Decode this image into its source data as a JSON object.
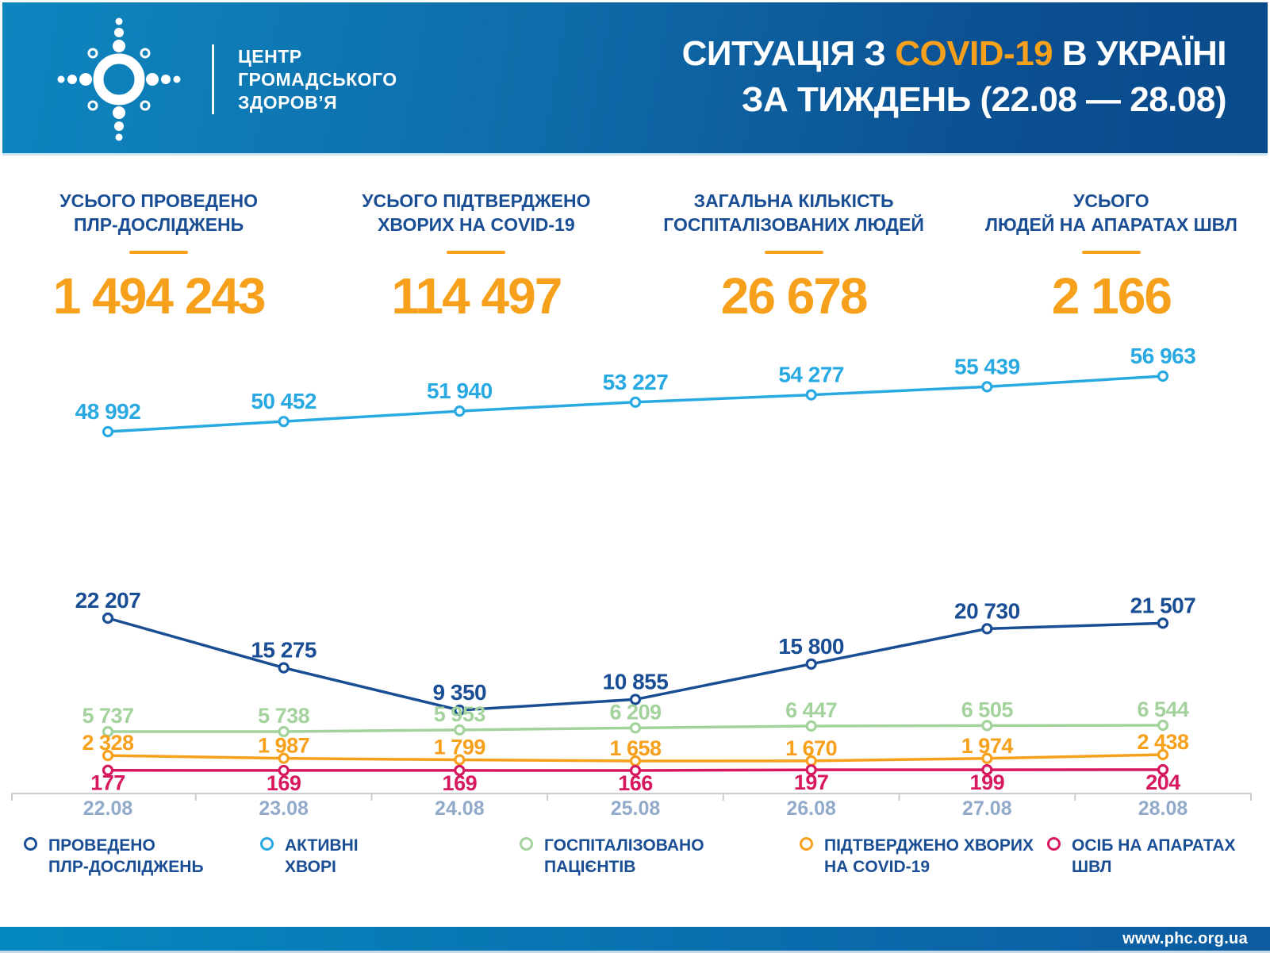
{
  "header": {
    "logo_text": "ЦЕНТР\nГРОМАДСЬКОГО\nЗДОРОВ’Я",
    "title": {
      "line1_prefix": "СИТУАЦІЯ З ",
      "line1_highlight": "COVID-19",
      "line1_suffix": " В УКРАЇНІ",
      "line2": "ЗА ТИЖДЕНЬ (22.08 — 28.08)"
    }
  },
  "stats": {
    "items": [
      {
        "label": "УСЬОГО ПРОВЕДЕНО\nПЛР-ДОСЛІДЖЕНЬ",
        "value": "1 494 243"
      },
      {
        "label": "УСЬОГО ПІДТВЕРДЖЕНО\nХВОРИХ НА COVID-19",
        "value": "114 497"
      },
      {
        "label": "ЗАГАЛЬНА КІЛЬКІСТЬ\nГОСПІТАЛІЗОВАНИХ ЛЮДЕЙ",
        "value": "26 678"
      },
      {
        "label": "УСЬОГО\nЛЮДЕЙ НА АПАРАТАХ ШВЛ",
        "value": "2 166"
      }
    ]
  },
  "chart_data": {
    "type": "line",
    "categories": [
      "22.08",
      "23.08",
      "24.08",
      "25.08",
      "26.08",
      "27.08",
      "28.08"
    ],
    "series": [
      {
        "id": "active",
        "name": "АКТИВНІ ХВОРІ",
        "color": "#29a9e1",
        "values": [
          48992,
          50452,
          51940,
          53227,
          54277,
          55439,
          56963
        ],
        "label_position": "above"
      },
      {
        "id": "pcr",
        "name": "ПРОВЕДЕНО ПЛР-ДОСЛІДЖЕНЬ",
        "color": "#1a4e94",
        "values": [
          22207,
          15275,
          9350,
          10855,
          15800,
          20730,
          21507
        ],
        "label_position": "above"
      },
      {
        "id": "hospitalized",
        "name": "ГОСПІТАЛІЗОВАНО ПАЦІЄНТІВ",
        "color": "#a3d29c",
        "values": [
          5737,
          5738,
          5953,
          6209,
          6447,
          6505,
          6544
        ],
        "label_position": "above"
      },
      {
        "id": "confirmed",
        "name": "ПІДТВЕРДЖЕНО ХВОРИХ НА COVID-19",
        "color": "#f6a01b",
        "values": [
          2328,
          1987,
          1799,
          1658,
          1670,
          1974,
          2438
        ],
        "label_position": "above"
      },
      {
        "id": "ventilator",
        "name": "ОСІБ НА АПАРАТАХ ШВЛ",
        "color": "#d7185e",
        "values": [
          177,
          169,
          169,
          166,
          197,
          199,
          204
        ],
        "label_position": "below"
      }
    ],
    "legend": [
      {
        "series": "pcr",
        "label": "ПРОВЕДЕНО\nПЛР-ДОСЛІДЖЕНЬ"
      },
      {
        "series": "active",
        "label": "АКТИВНІ\nХВОРІ"
      },
      {
        "series": "hospitalized",
        "label": "ГОСПІТАЛІЗОВАНО\nПАЦІЄНТІВ"
      },
      {
        "series": "confirmed",
        "label": "ПІДТВЕРДЖЕНО ХВОРИХ\nНА COVID-19"
      },
      {
        "series": "ventilator",
        "label": "ОСІБ НА АПАРАТАХ\nШВЛ"
      }
    ],
    "legend_position": "bottom",
    "grid": false,
    "x_axis_label_color": "#92aac9",
    "axis_line_color": "#c9cdd2",
    "value_label_thousands_separator": " "
  },
  "colors": {
    "header_gradient_start": "#0d86bf",
    "header_gradient_end": "#0a4a8a",
    "accent_orange": "#f6a01b",
    "heading_blue": "#1a4e94",
    "background": "#ffffff"
  },
  "footer": {
    "url": "www.phc.org.ua"
  }
}
